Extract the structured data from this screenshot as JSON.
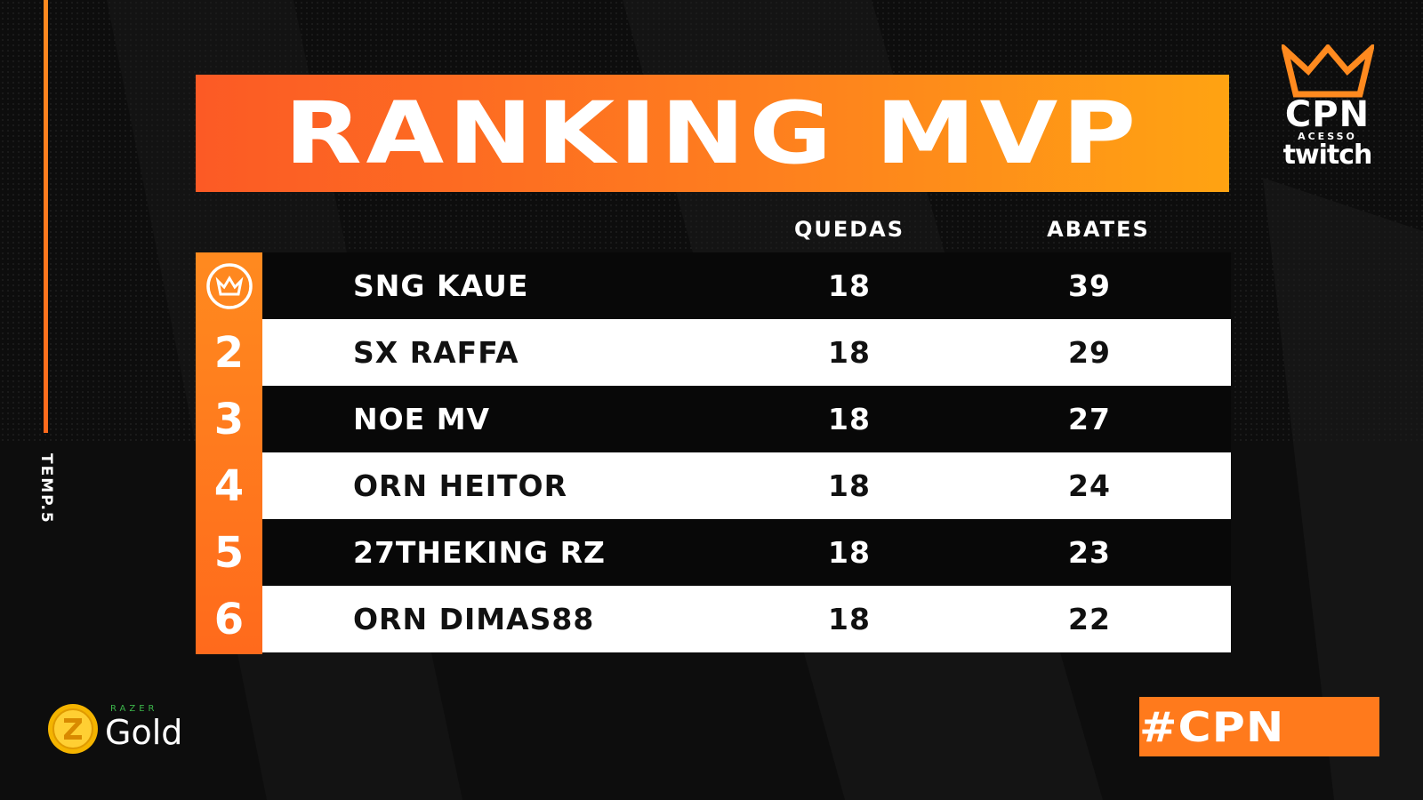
{
  "season_tag": "TEMP.5",
  "title": "RANKING MVP",
  "brand": {
    "name": "CPN",
    "sub": "ACESSO",
    "platform": "twitch"
  },
  "columns": {
    "drops": "QUEDAS",
    "kills": "ABATES"
  },
  "rows": [
    {
      "rank": "1",
      "rank_icon": "crown-icon",
      "player": "SNG KAUE",
      "drops": "18",
      "kills": "39"
    },
    {
      "rank": "2",
      "player": "SX RAFFA",
      "drops": "18",
      "kills": "29"
    },
    {
      "rank": "3",
      "player": "NOE MV",
      "drops": "18",
      "kills": "27"
    },
    {
      "rank": "4",
      "player": "ORN HEITOR",
      "drops": "18",
      "kills": "24"
    },
    {
      "rank": "5",
      "player": "27THEKING RZ",
      "drops": "18",
      "kills": "23"
    },
    {
      "rank": "6",
      "player": "ORN DIMAS88",
      "drops": "18",
      "kills": "22"
    }
  ],
  "sponsor": {
    "brand": "RAZER",
    "name": "Gold",
    "icon": "razer-gold-coin-icon"
  },
  "hashtag": "#CPN",
  "colors": {
    "accent": "#ff7a1c",
    "accent_start": "#fc5a25",
    "accent_end": "#ffa312",
    "dark_row": "#080808",
    "light_row": "#ffffff",
    "background": "#0d0d0d"
  }
}
